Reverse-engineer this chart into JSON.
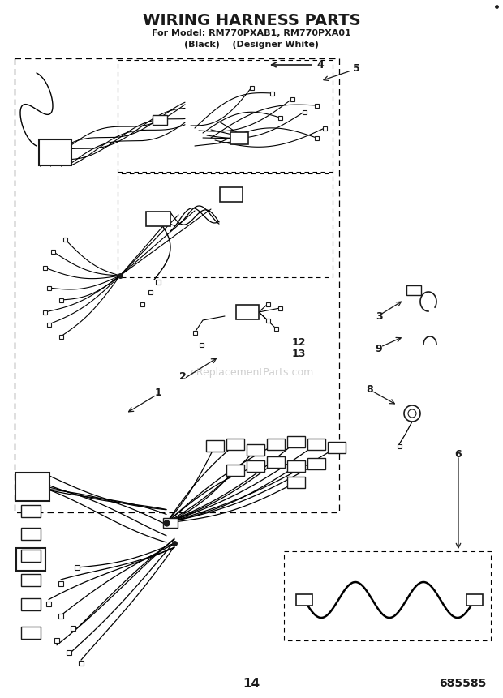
{
  "title": "WIRING HARNESS PARTS",
  "subtitle1": "For Model: RM770PXAB1, RM770PXA01",
  "subtitle2": "(Black)    (Designer White)",
  "page_num": "14",
  "part_num": "685585",
  "bg_color": "#ffffff",
  "lc": "#1a1a1a",
  "watermark": "eReplacementParts.com",
  "fig_w": 6.2,
  "fig_h": 8.61,
  "dpi": 100
}
